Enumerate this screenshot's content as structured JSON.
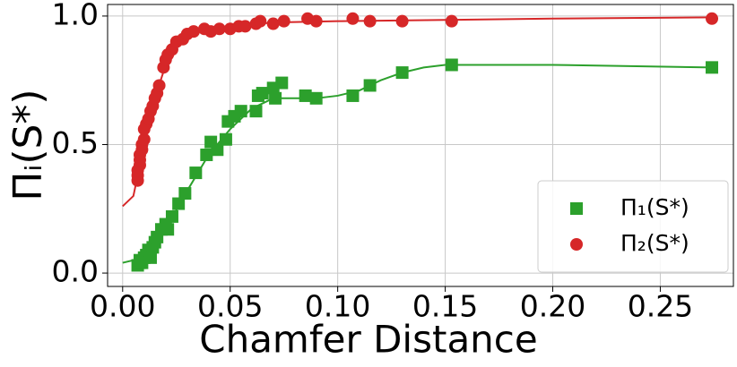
{
  "chart_data": {
    "type": "scatter",
    "x_label": "Chamfer Distance",
    "y_label": "Πᵢ(S*)",
    "xlim": [
      -0.007,
      0.284
    ],
    "ylim": [
      -0.052,
      1.045
    ],
    "xticks": [
      {
        "value": 0,
        "label": "0.00"
      },
      {
        "value": 0.05,
        "label": "0.05"
      },
      {
        "value": 0.1,
        "label": "0.10"
      },
      {
        "value": 0.15,
        "label": "0.15"
      },
      {
        "value": 0.2,
        "label": "0.20"
      },
      {
        "value": 0.25,
        "label": "0.25"
      }
    ],
    "yticks": [
      {
        "value": 0,
        "label": "0.0"
      },
      {
        "value": 0.5,
        "label": "0.5"
      },
      {
        "value": 1,
        "label": "1.0"
      }
    ],
    "grid": true,
    "legend": "lower right",
    "series": [
      {
        "name": "Π₁(S*)",
        "color": "#2ca02c",
        "marker": "square",
        "x": [
          0.007,
          0.008,
          0.008,
          0.009,
          0.01,
          0.011,
          0.012,
          0.013,
          0.014,
          0.015,
          0.016,
          0.018,
          0.02,
          0.021,
          0.023,
          0.026,
          0.029,
          0.034,
          0.039,
          0.041,
          0.044,
          0.048,
          0.049,
          0.052,
          0.055,
          0.062,
          0.063,
          0.065,
          0.07,
          0.071,
          0.074,
          0.085,
          0.09,
          0.107,
          0.115,
          0.13,
          0.153,
          0.274
        ],
        "values": [
          0.03,
          0.04,
          0.05,
          0.04,
          0.06,
          0.07,
          0.09,
          0.06,
          0.1,
          0.12,
          0.14,
          0.17,
          0.19,
          0.17,
          0.22,
          0.27,
          0.31,
          0.39,
          0.46,
          0.51,
          0.48,
          0.52,
          0.59,
          0.61,
          0.63,
          0.63,
          0.69,
          0.7,
          0.72,
          0.68,
          0.74,
          0.69,
          0.68,
          0.69,
          0.73,
          0.78,
          0.81,
          0.8
        ],
        "fit": {
          "x": [
            0,
            0.01,
            0.02,
            0.03,
            0.04,
            0.05,
            0.06,
            0.07,
            0.08,
            0.09,
            0.1,
            0.11,
            0.12,
            0.13,
            0.14,
            0.15,
            0.2,
            0.274
          ],
          "values": [
            0.04,
            0.06,
            0.17,
            0.32,
            0.46,
            0.56,
            0.64,
            0.68,
            0.68,
            0.68,
            0.69,
            0.71,
            0.75,
            0.78,
            0.8,
            0.81,
            0.81,
            0.8
          ]
        }
      },
      {
        "name": "Π₂(S*)",
        "color": "#d62728",
        "marker": "circle",
        "x": [
          0.007,
          0.007,
          0.007,
          0.008,
          0.008,
          0.008,
          0.009,
          0.009,
          0.01,
          0.01,
          0.011,
          0.012,
          0.013,
          0.014,
          0.015,
          0.016,
          0.017,
          0.019,
          0.02,
          0.021,
          0.023,
          0.025,
          0.028,
          0.03,
          0.033,
          0.038,
          0.041,
          0.045,
          0.05,
          0.054,
          0.057,
          0.062,
          0.064,
          0.07,
          0.075,
          0.086,
          0.09,
          0.107,
          0.115,
          0.13,
          0.153,
          0.274
        ],
        "values": [
          0.36,
          0.38,
          0.4,
          0.42,
          0.44,
          0.46,
          0.48,
          0.5,
          0.52,
          0.56,
          0.58,
          0.6,
          0.63,
          0.65,
          0.68,
          0.7,
          0.73,
          0.8,
          0.83,
          0.85,
          0.87,
          0.9,
          0.91,
          0.93,
          0.94,
          0.95,
          0.94,
          0.95,
          0.95,
          0.96,
          0.96,
          0.97,
          0.98,
          0.97,
          0.98,
          0.99,
          0.98,
          0.99,
          0.98,
          0.98,
          0.98,
          0.99
        ],
        "fit": {
          "x": [
            0,
            0.005,
            0.01,
            0.015,
            0.02,
            0.025,
            0.03,
            0.04,
            0.05,
            0.07,
            0.1,
            0.15,
            0.2,
            0.274
          ],
          "values": [
            0.26,
            0.3,
            0.5,
            0.68,
            0.81,
            0.89,
            0.93,
            0.95,
            0.96,
            0.975,
            0.98,
            0.985,
            0.99,
            0.995
          ]
        }
      }
    ]
  }
}
